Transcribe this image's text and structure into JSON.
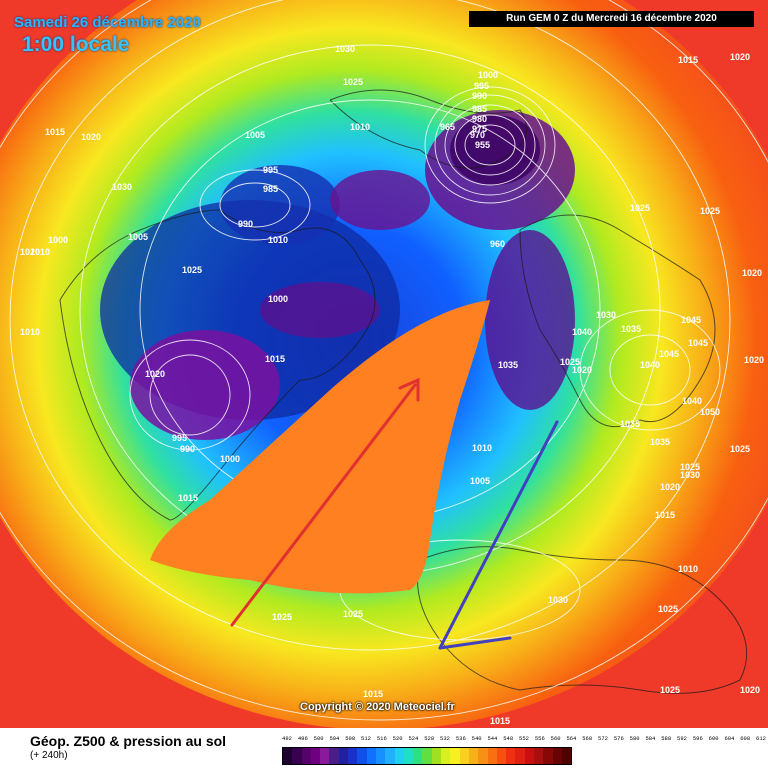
{
  "header": {
    "date": "Samedi 26 décembre 2020",
    "local_time": "1:00 locale",
    "run": "Run GEM 0 Z du Mercredi 16 décembre 2020"
  },
  "footer": {
    "copyright": "Copyright © 2020 Meteociel.fr",
    "title": "Géop. Z500 & pression au sol",
    "subtitle": "(+ 240h)"
  },
  "legend": {
    "values": [
      "492",
      "496",
      "500",
      "504",
      "508",
      "512",
      "516",
      "520",
      "524",
      "528",
      "532",
      "536",
      "540",
      "544",
      "548",
      "552",
      "556",
      "560",
      "564",
      "568",
      "572",
      "576",
      "580",
      "584",
      "588",
      "592",
      "596",
      "600",
      "604",
      "608",
      "612"
    ],
    "colors": [
      "#1e0030",
      "#3a0050",
      "#55006b",
      "#700080",
      "#8b1a9a",
      "#4a1e8a",
      "#2020a0",
      "#1a30c8",
      "#1050e8",
      "#1070ff",
      "#1890ff",
      "#20b0ff",
      "#20d0f0",
      "#20e0c0",
      "#30e080",
      "#60e040",
      "#a0e020",
      "#d8f020",
      "#f8f020",
      "#f8d020",
      "#f8b018",
      "#f89018",
      "#f87010",
      "#f85010",
      "#f03010",
      "#e02010",
      "#c81010",
      "#a81010",
      "#880808",
      "#680404",
      "#500000"
    ]
  },
  "isobars": [
    {
      "label": "1030",
      "color": "#ffffff"
    },
    {
      "label": "1025",
      "color": "#ffffff"
    },
    {
      "label": "1015",
      "color": "#ffffff"
    },
    {
      "label": "1020",
      "color": "#ffffff"
    },
    {
      "label": "1005",
      "color": "#ffffff"
    },
    {
      "label": "1010",
      "color": "#ffffff"
    },
    {
      "label": "995",
      "color": "#ffffff"
    },
    {
      "label": "985",
      "color": "#ffffff"
    },
    {
      "label": "990",
      "color": "#ffffff"
    },
    {
      "label": "1000",
      "color": "#ffffff"
    },
    {
      "label": "1005",
      "color": "#ffffff"
    },
    {
      "label": "1020",
      "color": "#ffffff"
    },
    {
      "label": "1030",
      "color": "#ffffff"
    },
    {
      "label": "1010",
      "color": "#ffffff"
    },
    {
      "label": "1025",
      "color": "#ffffff"
    },
    {
      "label": "1000",
      "color": "#ffffff"
    },
    {
      "label": "1015",
      "color": "#ffffff"
    },
    {
      "label": "1020",
      "color": "#ffffff"
    },
    {
      "label": "995",
      "color": "#ffffff"
    },
    {
      "label": "990",
      "color": "#ffffff"
    },
    {
      "label": "1000",
      "color": "#ffffff"
    },
    {
      "label": "1015",
      "color": "#ffffff"
    },
    {
      "label": "1025",
      "color": "#ffffff"
    },
    {
      "label": "1025",
      "color": "#ffffff"
    },
    {
      "label": "1000",
      "color": "#ffffff"
    },
    {
      "label": "995",
      "color": "#ffffff"
    },
    {
      "label": "990",
      "color": "#ffffff"
    },
    {
      "label": "985",
      "color": "#ffffff"
    },
    {
      "label": "980",
      "color": "#ffffff"
    },
    {
      "label": "975",
      "color": "#ffffff"
    },
    {
      "label": "970",
      "color": "#ffffff"
    },
    {
      "label": "965",
      "color": "#ffffff"
    },
    {
      "label": "955",
      "color": "#ffffff"
    },
    {
      "label": "960",
      "color": "#ffffff"
    },
    {
      "label": "1035",
      "color": "#ffffff"
    },
    {
      "label": "1040",
      "color": "#ffffff"
    },
    {
      "label": "1030",
      "color": "#ffffff"
    },
    {
      "label": "1025",
      "color": "#ffffff"
    },
    {
      "label": "1020",
      "color": "#ffffff"
    },
    {
      "label": "1035",
      "color": "#ffffff"
    },
    {
      "label": "1045",
      "color": "#ffffff"
    },
    {
      "label": "1040",
      "color": "#ffffff"
    },
    {
      "label": "1045",
      "color": "#ffffff"
    },
    {
      "label": "1045",
      "color": "#ffffff"
    },
    {
      "label": "1050",
      "color": "#ffffff"
    },
    {
      "label": "1040",
      "color": "#ffffff"
    },
    {
      "label": "1035",
      "color": "#ffffff"
    },
    {
      "label": "1035",
      "color": "#ffffff"
    },
    {
      "label": "1020",
      "color": "#ffffff"
    },
    {
      "label": "1030",
      "color": "#ffffff"
    },
    {
      "label": "1025",
      "color": "#ffffff"
    },
    {
      "label": "1020",
      "color": "#ffffff"
    },
    {
      "label": "1015",
      "color": "#ffffff"
    },
    {
      "label": "1010",
      "color": "#ffffff"
    },
    {
      "label": "1025",
      "color": "#ffffff"
    },
    {
      "label": "1020",
      "color": "#ffffff"
    },
    {
      "label": "1025",
      "color": "#ffffff"
    },
    {
      "label": "1010",
      "color": "#ffffff"
    },
    {
      "label": "1005",
      "color": "#ffffff"
    },
    {
      "label": "1020",
      "color": "#ffffff"
    },
    {
      "label": "1015",
      "color": "#ffffff"
    },
    {
      "label": "1030",
      "color": "#ffffff"
    },
    {
      "label": "1025",
      "color": "#ffffff"
    },
    {
      "label": "1025",
      "color": "#ffffff"
    },
    {
      "label": "1010",
      "color": "#ffffff"
    },
    {
      "label": "1010",
      "color": "#ffffff"
    },
    {
      "label": "1025",
      "color": "#ffffff"
    },
    {
      "label": "1015",
      "color": "#ffffff"
    },
    {
      "label": "1020",
      "color": "#ffffff"
    },
    {
      "label": "1015",
      "color": "#ffffff"
    }
  ],
  "annotations": {
    "wedge_color": "#ff8020",
    "red_arrow_color": "#e03030",
    "blue_arrow_color": "#4040c0"
  }
}
